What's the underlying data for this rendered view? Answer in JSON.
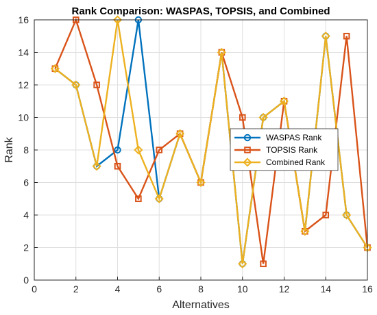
{
  "chart_data": {
    "type": "line",
    "title": "Rank Comparison: WASPAS, TOPSIS, and Combined",
    "xlabel": "Alternatives",
    "ylabel": "Rank",
    "xlim": [
      0,
      16
    ],
    "ylim": [
      0,
      16
    ],
    "xticks": [
      0,
      2,
      4,
      6,
      8,
      10,
      12,
      14,
      16
    ],
    "yticks": [
      0,
      2,
      4,
      6,
      8,
      10,
      12,
      14,
      16
    ],
    "grid": true,
    "legend_position": "center-right",
    "x": [
      1,
      2,
      3,
      4,
      5,
      6,
      7,
      8,
      9,
      10,
      11,
      12,
      13,
      14,
      15,
      16
    ],
    "series": [
      {
        "name": "WASPAS Rank",
        "color": "#0072BD",
        "marker": "circle",
        "values": [
          13,
          12,
          7,
          8,
          16,
          5,
          9,
          6,
          14,
          1,
          10,
          11,
          3,
          15,
          4,
          2
        ]
      },
      {
        "name": "TOPSIS Rank",
        "color": "#D95319",
        "marker": "square",
        "values": [
          13,
          16,
          12,
          7,
          5,
          8,
          9,
          6,
          14,
          10,
          1,
          11,
          3,
          4,
          15,
          2
        ]
      },
      {
        "name": "Combined Rank",
        "color": "#EDB120",
        "marker": "diamond",
        "values": [
          13,
          12,
          7,
          16,
          8,
          5,
          9,
          6,
          14,
          1,
          10,
          11,
          3,
          15,
          4,
          2
        ]
      }
    ]
  }
}
